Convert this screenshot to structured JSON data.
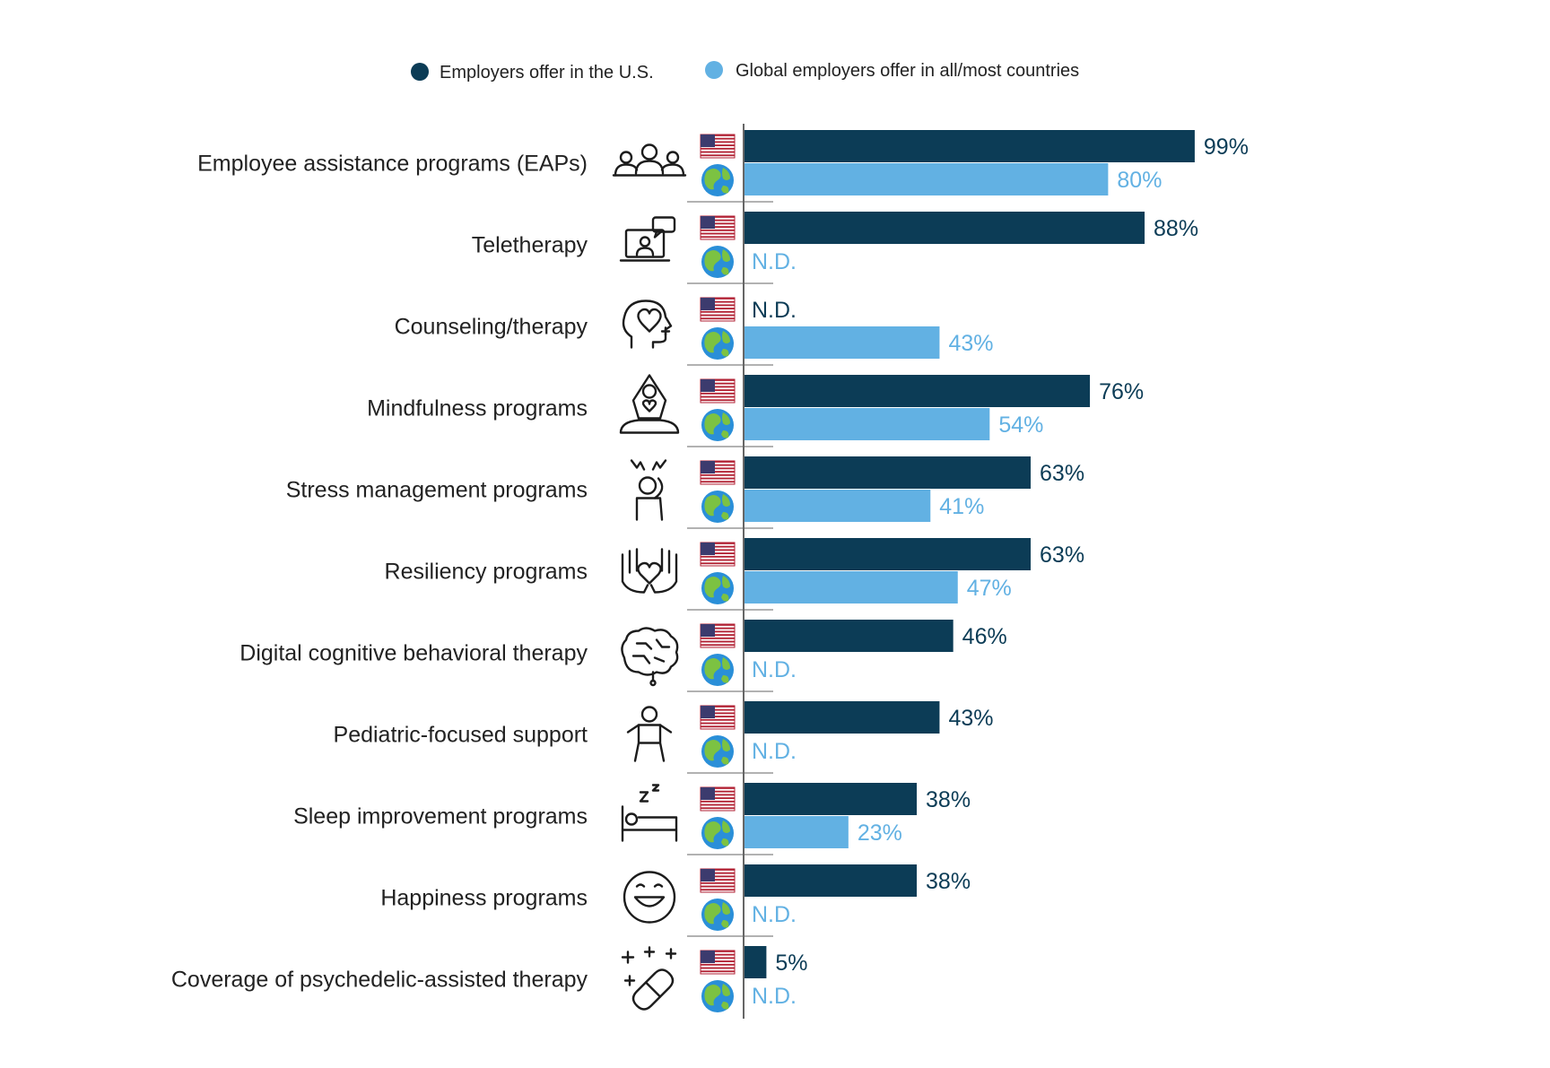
{
  "colors": {
    "us": "#0c3c56",
    "global": "#62b1e3",
    "axis": "#666666",
    "text": "#222222"
  },
  "legend": {
    "us_label": "Employers offer in the U.S.",
    "global_label": "Global employers offer in all/most countries",
    "placement": "top"
  },
  "chart_data": {
    "type": "bar",
    "orientation": "horizontal",
    "xlim": [
      0,
      100
    ],
    "unit": "%",
    "missing_label": "N.D.",
    "categories": [
      "Employee assistance programs (EAPs)",
      "Teletherapy",
      "Counseling/therapy",
      "Mindfulness programs",
      "Stress management programs",
      "Resiliency programs",
      "Digital cognitive behavioral therapy",
      "Pediatric-focused support",
      "Sleep improvement programs",
      "Happiness programs",
      "Coverage of psychedelic-assisted therapy"
    ],
    "icons": [
      "group-people-icon",
      "laptop-video-chat-icon",
      "head-heart-plus-icon",
      "meditation-icon",
      "stressed-person-icon",
      "hands-heart-icon",
      "brain-circuit-icon",
      "child-icon",
      "bed-sleep-icon",
      "smiley-face-icon",
      "pill-stars-icon"
    ],
    "series": [
      {
        "name": "Employers offer in the U.S.",
        "flag_icon": "us-flag-icon",
        "values": [
          99,
          88,
          null,
          76,
          63,
          63,
          46,
          43,
          38,
          38,
          5
        ]
      },
      {
        "name": "Global employers offer in all/most countries",
        "flag_icon": "globe-icon",
        "values": [
          80,
          null,
          43,
          54,
          41,
          47,
          null,
          null,
          23,
          null,
          null
        ]
      }
    ]
  }
}
